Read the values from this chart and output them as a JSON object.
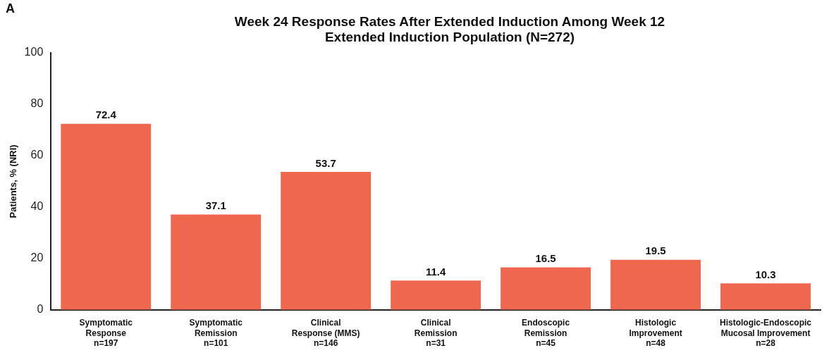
{
  "chart_data": {
    "type": "bar",
    "title": "Week 24 Response Rates After Extended Induction Among Week 12 Extended Induction Population (N=272)",
    "ylabel": "Patients, % (NRI)",
    "annotations": [
      "A"
    ],
    "categories": [
      "Symptomatic\nResponse\nn=197",
      "Symptomatic\nRemission\nn=101",
      "Clinical\nResponse (MMS)\nn=146",
      "Clinical\nRemission\nn=31",
      "Endoscopic\nRemission\nn=45",
      "Histologic\nImprovement\nn=48",
      "Histologic-Endoscopic\nMucosal Improvement\nn=28"
    ],
    "values": [
      72.4,
      37.1,
      53.7,
      11.4,
      16.5,
      19.5,
      10.3
    ],
    "color": "#f0674f",
    "ylim": [
      0,
      100
    ],
    "yticks": [
      0,
      20,
      40,
      60,
      80,
      100
    ],
    "data_labels": true
  }
}
